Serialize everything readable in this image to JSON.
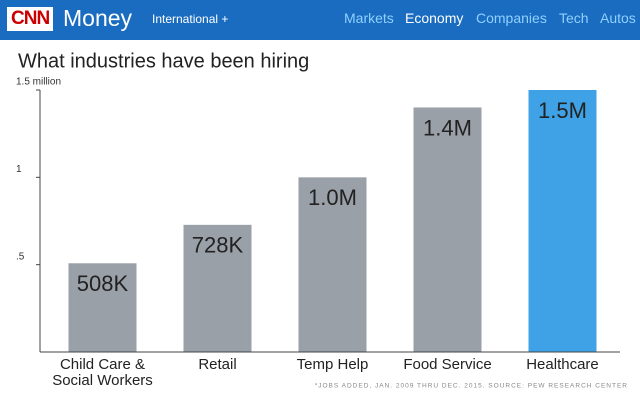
{
  "header": {
    "logo": "CNN",
    "brand": "Money",
    "edition": "International +",
    "nav": [
      "Markets",
      "Economy",
      "Companies",
      "Tech",
      "Autos"
    ],
    "active": 1
  },
  "chart_data": {
    "type": "bar",
    "title": "What industries have been hiring",
    "categories": [
      "Child Care & Social Workers",
      "Retail",
      "Temp Help",
      "Food Service",
      "Healthcare"
    ],
    "values": [
      0.508,
      0.728,
      1.0,
      1.4,
      1.5
    ],
    "value_labels": [
      "508K",
      "728K",
      "1.0M",
      "1.4M",
      "1.5M"
    ],
    "colors": [
      "#9aa0a8",
      "#9aa0a8",
      "#9aa0a8",
      "#9aa0a8",
      "#3fa2e6"
    ],
    "ylim": [
      0,
      1.5
    ],
    "yticks": [
      {
        "value": 0.5,
        "label": ".5"
      },
      1,
      {
        "value": 1.5,
        "label": "1.5 million"
      }
    ],
    "grid": false,
    "note": "*JOBS ADDED, JAN. 2009 THRU DEC. 2015. SOURCE: PEW RESEARCH CENTER"
  }
}
